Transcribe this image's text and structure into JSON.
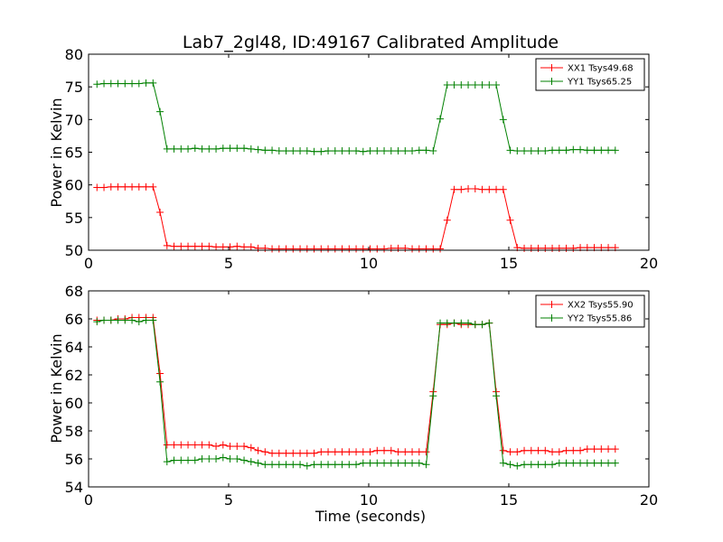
{
  "colors": {
    "red": "#ff0000",
    "green": "#008000"
  },
  "chart_data": [
    {
      "type": "line",
      "title": "Lab7_2gl48, ID:49167 Calibrated Amplitude",
      "xlabel": "",
      "ylabel": "Power in Kelvin",
      "xlim": [
        0,
        20
      ],
      "ylim": [
        50,
        80
      ],
      "xticks": [
        "0",
        "5",
        "10",
        "15",
        "20"
      ],
      "yticks": [
        "50",
        "55",
        "60",
        "65",
        "70",
        "75",
        "80"
      ],
      "legend_position": "top-right",
      "x": [
        0.3,
        0.55,
        0.8,
        1.05,
        1.3,
        1.55,
        1.8,
        2.05,
        2.3,
        2.55,
        2.8,
        3.05,
        3.3,
        3.55,
        3.8,
        4.05,
        4.3,
        4.55,
        4.8,
        5.05,
        5.3,
        5.55,
        5.8,
        6.05,
        6.3,
        6.55,
        6.8,
        7.05,
        7.3,
        7.55,
        7.8,
        8.05,
        8.3,
        8.55,
        8.8,
        9.05,
        9.3,
        9.55,
        9.8,
        10.05,
        10.3,
        10.55,
        10.8,
        11.05,
        11.3,
        11.55,
        11.8,
        12.05,
        12.3,
        12.55,
        12.8,
        13.05,
        13.3,
        13.55,
        13.8,
        14.05,
        14.3,
        14.55,
        14.8,
        15.05,
        15.3,
        15.55,
        15.8,
        16.05,
        16.3,
        16.55,
        16.8,
        17.05,
        17.3,
        17.55,
        17.8,
        18.05,
        18.3,
        18.55,
        18.8
      ],
      "series": [
        {
          "name": "XX1 Tsys49.68",
          "color": "#ff0000",
          "values": [
            59.6,
            59.6,
            59.7,
            59.7,
            59.7,
            59.7,
            59.7,
            59.7,
            59.7,
            55.8,
            50.7,
            50.6,
            50.6,
            50.6,
            50.6,
            50.6,
            50.6,
            50.5,
            50.5,
            50.5,
            50.6,
            50.5,
            50.5,
            50.3,
            50.3,
            50.2,
            50.2,
            50.2,
            50.2,
            50.2,
            50.2,
            50.2,
            50.2,
            50.2,
            50.2,
            50.2,
            50.2,
            50.2,
            50.2,
            50.2,
            50.2,
            50.2,
            50.3,
            50.3,
            50.3,
            50.2,
            50.2,
            50.2,
            50.2,
            50.2,
            54.6,
            59.3,
            59.3,
            59.4,
            59.4,
            59.3,
            59.3,
            59.3,
            59.3,
            54.6,
            50.4,
            50.3,
            50.3,
            50.3,
            50.3,
            50.3,
            50.3,
            50.3,
            50.3,
            50.4,
            50.4,
            50.4,
            50.4,
            50.4,
            50.4
          ]
        },
        {
          "name": "YY1 Tsys65.25",
          "color": "#008000",
          "values": [
            75.4,
            75.5,
            75.5,
            75.5,
            75.5,
            75.5,
            75.5,
            75.6,
            75.6,
            71.2,
            65.5,
            65.5,
            65.5,
            65.5,
            65.6,
            65.5,
            65.5,
            65.5,
            65.6,
            65.6,
            65.6,
            65.6,
            65.5,
            65.4,
            65.3,
            65.3,
            65.2,
            65.2,
            65.2,
            65.2,
            65.2,
            65.1,
            65.1,
            65.2,
            65.2,
            65.2,
            65.2,
            65.2,
            65.1,
            65.2,
            65.2,
            65.2,
            65.2,
            65.2,
            65.2,
            65.2,
            65.3,
            65.3,
            65.2,
            70.1,
            75.3,
            75.3,
            75.3,
            75.3,
            75.3,
            75.3,
            75.3,
            75.3,
            70.0,
            65.3,
            65.2,
            65.2,
            65.2,
            65.2,
            65.2,
            65.3,
            65.3,
            65.3,
            65.4,
            65.4,
            65.3,
            65.3,
            65.3,
            65.3,
            65.3
          ]
        }
      ]
    },
    {
      "type": "line",
      "title": "",
      "xlabel": "Time (seconds)",
      "ylabel": "Power in Kelvin",
      "xlim": [
        0,
        20
      ],
      "ylim": [
        54,
        68
      ],
      "xticks": [
        "0",
        "5",
        "10",
        "15",
        "20"
      ],
      "yticks": [
        "54",
        "56",
        "58",
        "60",
        "62",
        "64",
        "66",
        "68"
      ],
      "legend_position": "top-right",
      "x": [
        0.3,
        0.55,
        0.8,
        1.05,
        1.3,
        1.55,
        1.8,
        2.05,
        2.3,
        2.55,
        2.8,
        3.05,
        3.3,
        3.55,
        3.8,
        4.05,
        4.3,
        4.55,
        4.8,
        5.05,
        5.3,
        5.55,
        5.8,
        6.05,
        6.3,
        6.55,
        6.8,
        7.05,
        7.3,
        7.55,
        7.8,
        8.05,
        8.3,
        8.55,
        8.8,
        9.05,
        9.3,
        9.55,
        9.8,
        10.05,
        10.3,
        10.55,
        10.8,
        11.05,
        11.3,
        11.55,
        11.8,
        12.05,
        12.3,
        12.55,
        12.8,
        13.05,
        13.3,
        13.55,
        13.8,
        14.05,
        14.3,
        14.55,
        14.8,
        15.05,
        15.3,
        15.55,
        15.8,
        16.05,
        16.3,
        16.55,
        16.8,
        17.05,
        17.3,
        17.55,
        17.8,
        18.05,
        18.3,
        18.55,
        18.8
      ],
      "series": [
        {
          "name": "XX2 Tsys55.90",
          "color": "#ff0000",
          "values": [
            65.9,
            65.9,
            65.9,
            66.0,
            66.0,
            66.1,
            66.1,
            66.1,
            66.1,
            62.1,
            57.0,
            57.0,
            57.0,
            57.0,
            57.0,
            57.0,
            57.0,
            56.9,
            57.0,
            56.9,
            56.9,
            56.9,
            56.8,
            56.6,
            56.5,
            56.4,
            56.4,
            56.4,
            56.4,
            56.4,
            56.4,
            56.4,
            56.5,
            56.5,
            56.5,
            56.5,
            56.5,
            56.5,
            56.5,
            56.5,
            56.6,
            56.6,
            56.6,
            56.5,
            56.5,
            56.5,
            56.5,
            56.5,
            60.8,
            65.6,
            65.6,
            65.7,
            65.6,
            65.6,
            65.6,
            65.6,
            65.7,
            60.8,
            56.6,
            56.5,
            56.5,
            56.6,
            56.6,
            56.6,
            56.6,
            56.5,
            56.5,
            56.6,
            56.6,
            56.6,
            56.7,
            56.7,
            56.7,
            56.7,
            56.7
          ]
        },
        {
          "name": "YY2 Tsys55.86",
          "color": "#008000",
          "values": [
            65.8,
            65.9,
            65.9,
            65.9,
            65.9,
            65.9,
            65.8,
            65.9,
            65.9,
            61.5,
            55.8,
            55.9,
            55.9,
            55.9,
            55.9,
            56.0,
            56.0,
            56.0,
            56.1,
            56.0,
            56.0,
            55.9,
            55.8,
            55.7,
            55.6,
            55.6,
            55.6,
            55.6,
            55.6,
            55.6,
            55.5,
            55.6,
            55.6,
            55.6,
            55.6,
            55.6,
            55.6,
            55.6,
            55.7,
            55.7,
            55.7,
            55.7,
            55.7,
            55.7,
            55.7,
            55.7,
            55.7,
            55.6,
            60.5,
            65.7,
            65.7,
            65.7,
            65.7,
            65.7,
            65.6,
            65.6,
            65.7,
            60.5,
            55.7,
            55.6,
            55.5,
            55.6,
            55.6,
            55.6,
            55.6,
            55.6,
            55.7,
            55.7,
            55.7,
            55.7,
            55.7,
            55.7,
            55.7,
            55.7,
            55.7
          ]
        }
      ]
    }
  ]
}
